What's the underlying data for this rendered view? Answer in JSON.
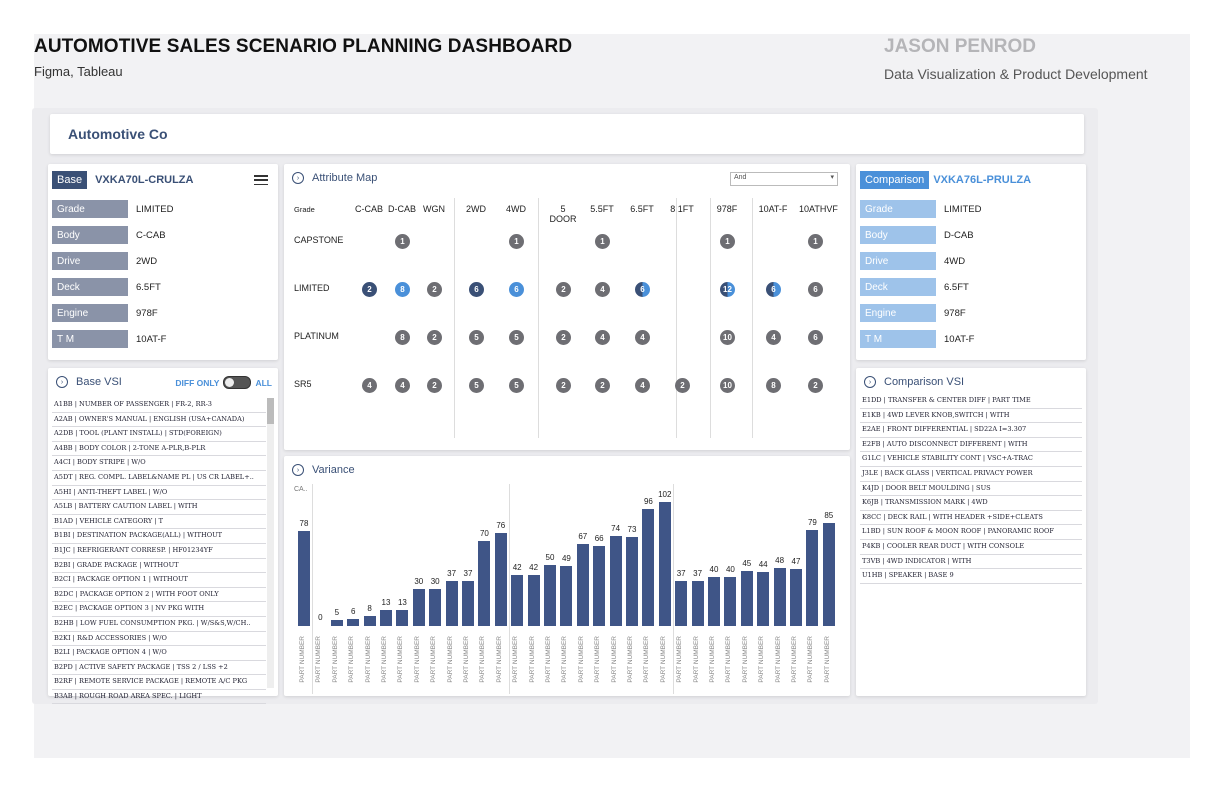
{
  "header": {
    "title": "AUTOMOTIVE SALES SCENARIO PLANNING DASHBOARD",
    "tools": "Figma, Tableau",
    "author": "JASON PENROD",
    "role": "Data Visualization & Product Development"
  },
  "company": "Automotive Co",
  "base": {
    "tag": "Base",
    "code": "VXKA70L-CRULZA",
    "menu_icon": "hamburger-menu-icon",
    "attributes": [
      {
        "label": "Grade",
        "value": "LIMITED"
      },
      {
        "label": "Body",
        "value": "C-CAB"
      },
      {
        "label": "Drive",
        "value": "2WD"
      },
      {
        "label": "Deck",
        "value": "6.5FT"
      },
      {
        "label": "Engine",
        "value": "978F"
      },
      {
        "label": "T M",
        "value": "10AT-F"
      }
    ],
    "color": "#3a5076",
    "label_color": "#8a93a8"
  },
  "comparison": {
    "tag": "Comparison",
    "code": "VXKA76L-PRULZA",
    "attributes": [
      {
        "label": "Grade",
        "value": "LIMITED"
      },
      {
        "label": "Body",
        "value": "D-CAB"
      },
      {
        "label": "Drive",
        "value": "4WD"
      },
      {
        "label": "Deck",
        "value": "6.5FT"
      },
      {
        "label": "Engine",
        "value": "978F"
      },
      {
        "label": "T M",
        "value": "10AT-F"
      }
    ],
    "color": "#4a90d9",
    "label_color": "#9ec3ea"
  },
  "base_vsi": {
    "title": "Base VSI",
    "diff_only": "DIFF ONLY",
    "all": "ALL",
    "items": [
      "A1BB | NUMBER OF PASSENGER | FR-2, RR-3",
      "A2AB | OWNER'S MANUAL | ENGLISH (USA+CANADA)",
      "A2DB | TOOL (PLANT INSTALL) | STD(FOREIGN)",
      "A4BB | BODY COLOR | 2-TONE A-PLR,B-PLR",
      "A4CI | BODY STRIPE | W/O",
      "A5DT | REG. COMPL. LABEL&NAME PL | US CR LABEL+..",
      "A5HI | ANTI-THEFT LABEL | W/O",
      "A5LB | BATTERY CAUTION LABEL | WITH",
      "B1AD | VEHICLE CATEGORY | T",
      "B1BI | DESTINATION PACKAGE(ALL) | WITHOUT",
      "B1JC | REFRIGERANT CORRESP. | HF01234YF",
      "B2BI | GRADE PACKAGE | WITHOUT",
      "B2CI | PACKAGE OPTION 1 | WITHOUT",
      "B2DC | PACKAGE OPTION 2 | WITH FOOT ONLY",
      "B2EC | PACKAGE OPTION 3 | NV PKG WITH",
      "B2HB | LOW FUEL CONSUMPTION PKG. | W/S&S,W/CH..",
      "B2KI | R&D ACCESSORIES | W/O",
      "B2LI | PACKAGE OPTION 4 | W/O",
      "B2PD | ACTIVE SAFETY PACKAGE | TSS 2 / LSS +2",
      "B2RF | REMOTE SERVICE PACKAGE | REMOTE A/C PKG",
      "B3AB | ROUGH ROAD AREA SPEC. | LIGHT"
    ]
  },
  "comparison_vsi": {
    "title": "Comparison VSI",
    "items": [
      "E1DD | TRANSFER & CENTER DIFF | PART TIME",
      "E1KB | 4WD LEVER KNOB,SWITCH | WITH",
      "E2AE | FRONT DIFFERENTIAL | SD22A I=3.307",
      "E2FB | AUTO DISCONNECT DIFFERENT | WITH",
      "G1LC | VEHICLE STABILITY CONT | VSC+A-TRAC",
      "J3LE | BACK GLASS | VERTICAL PRIVACY POWER",
      "K4JD | DOOR BELT MOULDING | SUS",
      "K6JB | TRANSMISSION MARK | 4WD",
      "K8CC | DECK RAIL | WITH HEADER +SIDE+CLEATS",
      "L1BD | SUN ROOF & MOON ROOF | PANORAMIC ROOF",
      "P4KB | COOLER REAR DUCT | WITH CONSOLE",
      "T3VB | 4WD INDICATOR | WITH",
      "U1HB | SPEAKER | BASE 9"
    ]
  },
  "attribute_map": {
    "title": "Attribute Map",
    "dropdown_value": "And",
    "grade_label": "Grade",
    "columns": [
      "C-CAB",
      "D-CAB",
      "WGN",
      "2WD",
      "4WD",
      "5 DOOR",
      "5.5FT",
      "6.5FT",
      "8.1FT",
      "978F",
      "10AT-F",
      "10ATHVF"
    ],
    "rows": [
      {
        "label": "CAPSTONE",
        "cells": [
          null,
          1,
          null,
          null,
          1,
          null,
          1,
          null,
          null,
          1,
          null,
          1
        ]
      },
      {
        "label": "LIMITED",
        "cells": [
          2,
          8,
          2,
          6,
          6,
          2,
          4,
          6,
          null,
          12,
          6,
          6
        ]
      },
      {
        "label": "PLATINUM",
        "cells": [
          null,
          8,
          2,
          5,
          5,
          2,
          4,
          4,
          null,
          10,
          4,
          6
        ]
      },
      {
        "label": "SR5",
        "cells": [
          4,
          4,
          2,
          5,
          5,
          2,
          2,
          4,
          2,
          10,
          8,
          2
        ]
      }
    ],
    "highlight": {
      "LIMITED": [
        "dark",
        "blue",
        "gray",
        "dark",
        "blue",
        "gray",
        "gray",
        "half",
        null,
        "half",
        "half",
        "gray"
      ]
    },
    "colors": {
      "gray": "#6e6e73",
      "dark": "#3a5076",
      "blue": "#4a90d9"
    }
  },
  "variance": {
    "title": "Variance",
    "corner_label": "CA..",
    "chart_data": {
      "type": "bar",
      "categories": [
        "PART NUMBER",
        "PART NUMBER",
        "PART NUMBER",
        "PART NUMBER",
        "PART NUMBER",
        "PART NUMBER",
        "PART NUMBER",
        "PART NUMBER",
        "PART NUMBER",
        "PART NUMBER",
        "PART NUMBER",
        "PART NUMBER",
        "PART NUMBER",
        "PART NUMBER",
        "PART NUMBER",
        "PART NUMBER",
        "PART NUMBER",
        "PART NUMBER",
        "PART NUMBER",
        "PART NUMBER",
        "PART NUMBER",
        "PART NUMBER",
        "PART NUMBER",
        "PART NUMBER",
        "PART NUMBER",
        "PART NUMBER",
        "PART NUMBER",
        "PART NUMBER",
        "PART NUMBER",
        "PART NUMBER",
        "PART NUMBER",
        "PART NUMBER",
        "PART NUMBER"
      ],
      "values": [
        78,
        0,
        5,
        6,
        8,
        13,
        13,
        30,
        30,
        37,
        37,
        70,
        76,
        42,
        42,
        50,
        49,
        67,
        66,
        74,
        73,
        96,
        102,
        37,
        37,
        40,
        40,
        45,
        44,
        48,
        47,
        79,
        85
      ],
      "groups": [
        1,
        12,
        10,
        10
      ],
      "ylim": [
        0,
        110
      ],
      "color": "#3f5587"
    }
  }
}
